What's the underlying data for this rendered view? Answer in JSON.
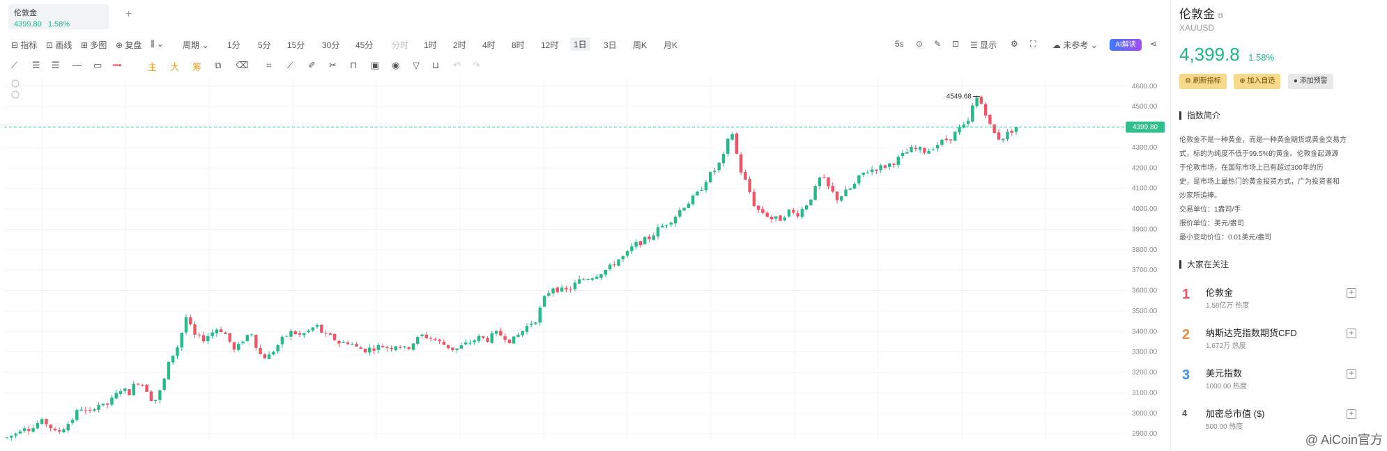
{
  "tab": {
    "name": "伦敦金",
    "price": "4399.80",
    "change": "1.58%"
  },
  "toolbar": {
    "items": [
      "指标",
      "画线",
      "多图",
      "复盘",
      "周期",
      "1分",
      "5分",
      "15分",
      "30分",
      "45分",
      "分时",
      "1时",
      "2时",
      "4时",
      "8时",
      "12时",
      "1日",
      "3日",
      "周K",
      "月K"
    ],
    "active": "1日",
    "right_items": [
      "5s",
      "显示",
      "未参考"
    ],
    "ai_label": "AI解读"
  },
  "drawtools": [
    "主",
    "大",
    "筹"
  ],
  "chart_data": {
    "type": "candlestick",
    "y_ticks": [
      4600,
      4500,
      4300,
      4200,
      4100,
      4000,
      3900,
      3800,
      3700,
      3600,
      3500,
      3400,
      3300,
      3200,
      3100,
      3000,
      2900
    ],
    "ylim": [
      2870,
      4640
    ],
    "current_price_label": "4399.80",
    "high_annotation": "4549.68",
    "up_color": "#26b98a",
    "down_color": "#ef5366",
    "dashed_line_color": "#2fc08e",
    "path": [
      2880,
      2900,
      2940,
      2920,
      2960,
      2950,
      2900,
      2930,
      2970,
      3030,
      2990,
      3050,
      3030,
      3070,
      3120,
      3100,
      3160,
      3130,
      3050,
      3120,
      3260,
      3330,
      3470,
      3380,
      3360,
      3390,
      3420,
      3380,
      3300,
      3360,
      3400,
      3290,
      3270,
      3320,
      3370,
      3400,
      3380,
      3400,
      3430,
      3380,
      3370,
      3340,
      3350,
      3320,
      3310,
      3320,
      3330,
      3320,
      3340,
      3310,
      3350,
      3380,
      3370,
      3350,
      3330,
      3310,
      3330,
      3350,
      3370,
      3360,
      3390,
      3380,
      3350,
      3390,
      3430,
      3460,
      3560,
      3620,
      3600,
      3600,
      3640,
      3660,
      3670,
      3690,
      3710,
      3750,
      3770,
      3820,
      3840,
      3860,
      3900,
      3930,
      3960,
      4010,
      4040,
      4080,
      4150,
      4190,
      4250,
      4390,
      4200,
      4110,
      4000,
      3980,
      3950,
      3950,
      3990,
      3970,
      4010,
      4070,
      4160,
      4100,
      4050,
      4080,
      4110,
      4170,
      4190,
      4200,
      4210,
      4230,
      4260,
      4290,
      4290,
      4280,
      4310,
      4330,
      4350,
      4390,
      4410,
      4550,
      4500,
      4380,
      4340,
      4370,
      4399.8
    ]
  },
  "panel": {
    "title": "伦敦金",
    "symbol": "XAUUSD",
    "price": "4,399.8",
    "change": "1.58%",
    "actions": [
      "刷新指标",
      "加入自选",
      "添加预警"
    ],
    "intro_title": "指数简介",
    "intro_lines": [
      "伦敦金不是一种黄金，而是一种黄金期货或黄金交易方",
      "式，标的为纯度不低于99.5%的黄金。伦敦金起源源",
      "于伦敦市场，在国际市场上已有超过300年的历",
      "史，是市场上最热门的黄金投资方式，广为投资者和",
      "炒家所追捧。",
      "交易单位：1盎司/手",
      "报价单位：美元/盎司",
      "最小变动价位：0.01美元/盎司"
    ],
    "trend_title": "大家在关注",
    "trend_items": [
      {
        "rank": "1",
        "name": "伦敦金",
        "heat": "1.58亿万 热度",
        "color": "#ef5366"
      },
      {
        "rank": "2",
        "name": "纳斯达克指数期货CFD",
        "heat": "1,672万 热度",
        "color": "#f08a3c"
      },
      {
        "rank": "3",
        "name": "美元指数",
        "heat": "1000.00 热度",
        "color": "#3c8ff0"
      },
      {
        "rank": "4",
        "name": "加密总市值 ($)",
        "heat": "500.00 热度",
        "color": "#555"
      }
    ]
  },
  "watermark": "@ AiCoin官方"
}
